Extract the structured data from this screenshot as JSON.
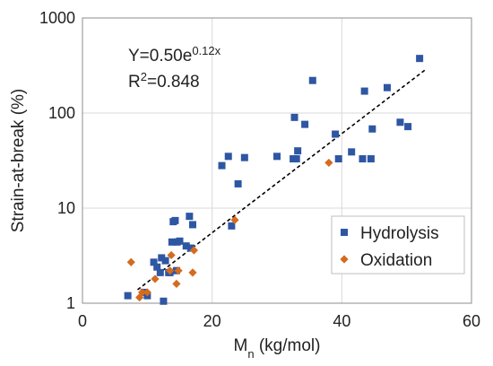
{
  "chart_data": {
    "type": "scatter",
    "title": "",
    "xlabel": "Mn (kg/mol)",
    "xlabel_parts": {
      "main": "M",
      "sub": "n",
      "rest": " (kg/mol)"
    },
    "ylabel": "Strain-at-break (%)",
    "xlim": [
      0,
      60
    ],
    "ylim": [
      1,
      1000
    ],
    "yscale": "log",
    "x_ticks": [
      0,
      20,
      40,
      60
    ],
    "y_ticks": [
      1,
      10,
      100,
      1000
    ],
    "grid": true,
    "legend_position": "bottom-right",
    "annotations": {
      "equation": {
        "base": "Y=0.50e",
        "exponent": "0.12x"
      },
      "r_squared": {
        "prefix": "R",
        "sup": "2",
        "value": "=0.848"
      }
    },
    "trendline": {
      "equation": "Y=0.50e^(0.12x)",
      "a": 0.5,
      "b": 0.12,
      "x_range": [
        8.5,
        53
      ],
      "style": "dashed",
      "color": "#000000"
    },
    "series": [
      {
        "name": "Hydrolysis",
        "marker": "square",
        "color": "#2e56a3",
        "points": [
          [
            7,
            1.2
          ],
          [
            9.5,
            1.3
          ],
          [
            10,
            1.2
          ],
          [
            11,
            2.7
          ],
          [
            11.5,
            2.4
          ],
          [
            12,
            2.1
          ],
          [
            12.2,
            3.0
          ],
          [
            12.5,
            1.05
          ],
          [
            12.8,
            2.8
          ],
          [
            13.3,
            2.1
          ],
          [
            13.5,
            2.1
          ],
          [
            13.8,
            4.4
          ],
          [
            14,
            7.2
          ],
          [
            14.3,
            7.4
          ],
          [
            14.5,
            2.2
          ],
          [
            14.6,
            4.4
          ],
          [
            15,
            4.5
          ],
          [
            16,
            4.0
          ],
          [
            16.5,
            8.2
          ],
          [
            16.7,
            3.8
          ],
          [
            17,
            6.7
          ],
          [
            21.5,
            28
          ],
          [
            22.5,
            35
          ],
          [
            23,
            6.5
          ],
          [
            24,
            18
          ],
          [
            25,
            34
          ],
          [
            30,
            35
          ],
          [
            32.5,
            33
          ],
          [
            32.7,
            90
          ],
          [
            33,
            33
          ],
          [
            33.2,
            40
          ],
          [
            34.3,
            76
          ],
          [
            35.5,
            220
          ],
          [
            39,
            60
          ],
          [
            39.5,
            33
          ],
          [
            41.5,
            39
          ],
          [
            43.2,
            33
          ],
          [
            43.5,
            170
          ],
          [
            44.5,
            33
          ],
          [
            44.7,
            68
          ],
          [
            47,
            185
          ],
          [
            49,
            80
          ],
          [
            50.2,
            72
          ],
          [
            52,
            375
          ]
        ]
      },
      {
        "name": "Oxidation",
        "marker": "diamond",
        "color": "#d46b1e",
        "points": [
          [
            7.5,
            2.7
          ],
          [
            8.8,
            1.15
          ],
          [
            9.2,
            1.3
          ],
          [
            10,
            1.3
          ],
          [
            11.2,
            1.8
          ],
          [
            13.5,
            2.2
          ],
          [
            13.7,
            3.2
          ],
          [
            14.5,
            1.6
          ],
          [
            14.8,
            2.2
          ],
          [
            17,
            2.1
          ],
          [
            17.2,
            3.6
          ],
          [
            23.5,
            7.5
          ],
          [
            38,
            30
          ]
        ]
      }
    ]
  }
}
